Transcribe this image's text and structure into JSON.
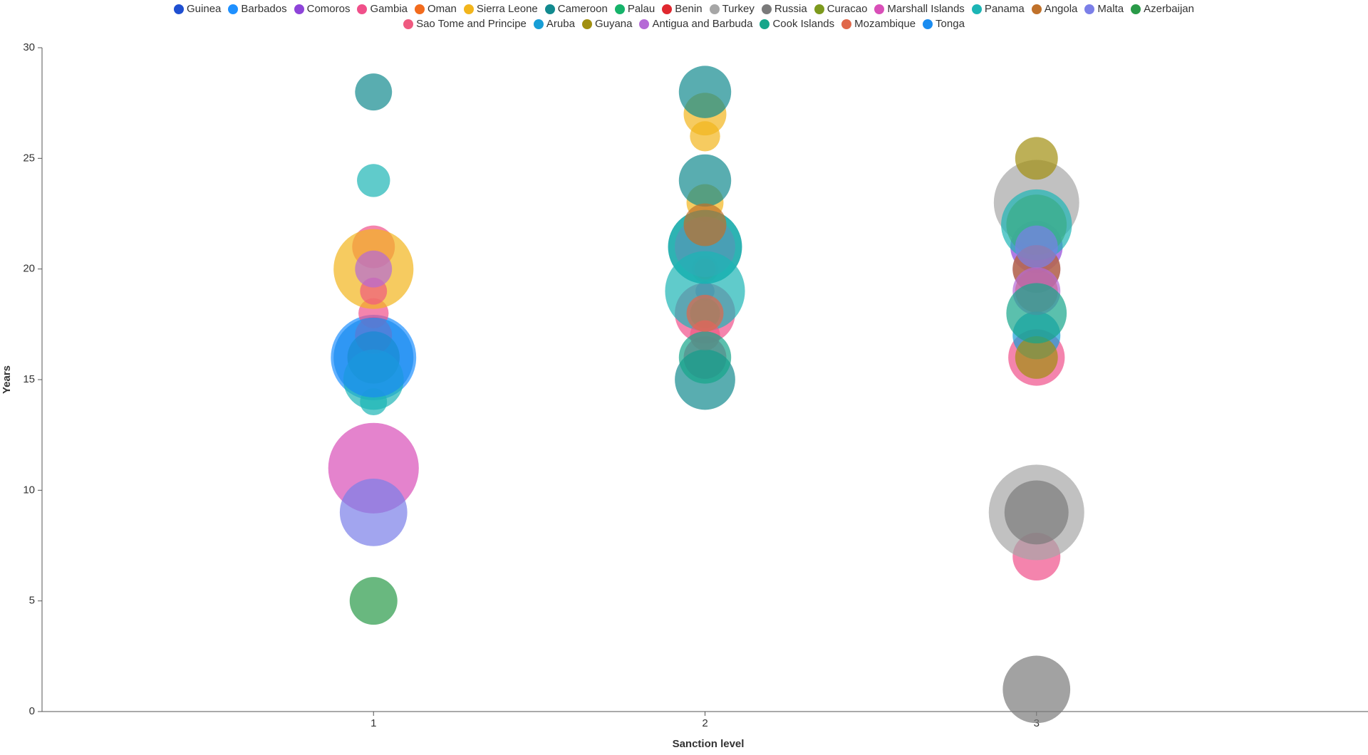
{
  "chart_data": {
    "type": "bubble",
    "xlabel": "Sanction level",
    "ylabel": "Years",
    "xlim": [
      0,
      4
    ],
    "xticks": [
      1,
      2,
      3
    ],
    "ylim": [
      0,
      30
    ],
    "yticks": [
      0,
      5,
      10,
      15,
      20,
      25,
      30
    ],
    "grid": false,
    "legend": "top",
    "series": [
      {
        "name": "Guinea",
        "color": "#1f4fd1",
        "x": [
          2
        ],
        "values": [
          19
        ],
        "sizes": [
          4
        ]
      },
      {
        "name": "Barbados",
        "color": "#1e90ff",
        "x": [
          1
        ],
        "values": [
          16
        ],
        "sizes": [
          80
        ]
      },
      {
        "name": "Comoros",
        "color": "#8e44d9",
        "x": [
          3,
          3
        ],
        "values": [
          21,
          20
        ],
        "sizes": [
          30,
          25
        ]
      },
      {
        "name": "Gambia",
        "color": "#f0508a",
        "x": [
          1,
          1,
          1,
          2,
          2,
          3,
          3
        ],
        "values": [
          21,
          18,
          17,
          18,
          16,
          16,
          7
        ],
        "sizes": [
          20,
          10,
          15,
          40,
          20,
          35,
          25
        ]
      },
      {
        "name": "Oman",
        "color": "#f26b1d",
        "x": [
          2,
          3
        ],
        "values": [
          20,
          19
        ],
        "sizes": [
          8,
          20
        ]
      },
      {
        "name": "Sierra Leone",
        "color": "#f2b51c",
        "x": [
          1,
          2,
          2,
          2
        ],
        "values": [
          20,
          27,
          26,
          23
        ],
        "sizes": [
          70,
          20,
          10,
          15
        ]
      },
      {
        "name": "Cameroon",
        "color": "#128a8f",
        "x": [
          1,
          2,
          2,
          1,
          2,
          2
        ],
        "values": [
          16,
          15,
          21,
          28,
          28,
          24
        ],
        "sizes": [
          30,
          40,
          60,
          15,
          30,
          30
        ]
      },
      {
        "name": "Palau",
        "color": "#16b36a",
        "x": [
          2
        ],
        "values": [
          18
        ],
        "sizes": [
          10
        ]
      },
      {
        "name": "Benin",
        "color": "#e0282f",
        "x": [
          2
        ],
        "values": [
          20
        ],
        "sizes": [
          5
        ]
      },
      {
        "name": "Turkey",
        "color": "#a6a6a6",
        "x": [
          3,
          3
        ],
        "values": [
          9,
          23
        ],
        "sizes": [
          100,
          80
        ]
      },
      {
        "name": "Russia",
        "color": "#7a7a7a",
        "x": [
          3,
          3
        ],
        "values": [
          1,
          9
        ],
        "sizes": [
          50,
          45
        ]
      },
      {
        "name": "Curacao",
        "color": "#7d9a1e",
        "x": [
          3
        ],
        "values": [
          22
        ],
        "sizes": [
          40
        ]
      },
      {
        "name": "Marshall Islands",
        "color": "#d94fb8",
        "x": [
          1,
          2
        ],
        "values": [
          11,
          21
        ],
        "sizes": [
          90,
          40
        ]
      },
      {
        "name": "Panama",
        "color": "#1cb5b5",
        "x": [
          1,
          1,
          2,
          2,
          3,
          1
        ],
        "values": [
          24,
          15,
          19,
          21,
          22,
          14
        ],
        "sizes": [
          12,
          40,
          70,
          60,
          55,
          8
        ]
      },
      {
        "name": "Angola",
        "color": "#c0712a",
        "x": [
          2,
          3
        ],
        "values": [
          22,
          20
        ],
        "sizes": [
          20,
          25
        ]
      },
      {
        "name": "Malta",
        "color": "#7b7fe8",
        "x": [
          1,
          3
        ],
        "values": [
          9,
          21
        ],
        "sizes": [
          50,
          20
        ]
      },
      {
        "name": "Azerbaijan",
        "color": "#2a9a48",
        "x": [
          1
        ],
        "values": [
          5
        ],
        "sizes": [
          25
        ]
      },
      {
        "name": "Sao Tome and Principe",
        "color": "#ef5a80",
        "x": [
          1,
          2
        ],
        "values": [
          19,
          17
        ],
        "sizes": [
          8,
          10
        ]
      },
      {
        "name": "Aruba",
        "color": "#179ed6",
        "x": [
          3
        ],
        "values": [
          17
        ],
        "sizes": [
          25
        ]
      },
      {
        "name": "Guyana",
        "color": "#a18f10",
        "x": [
          3,
          3
        ],
        "values": [
          25,
          16
        ],
        "sizes": [
          20,
          20
        ]
      },
      {
        "name": "Antigua and Barbuda",
        "color": "#b56ad6",
        "x": [
          1,
          3
        ],
        "values": [
          20,
          19
        ],
        "sizes": [
          15,
          25
        ]
      },
      {
        "name": "Cook Islands",
        "color": "#16a58a",
        "x": [
          2,
          3
        ],
        "values": [
          16,
          18
        ],
        "sizes": [
          30,
          40
        ]
      },
      {
        "name": "Mozambique",
        "color": "#e0684a",
        "x": [
          2
        ],
        "values": [
          18
        ],
        "sizes": [
          15
        ]
      },
      {
        "name": "Tonga",
        "color": "#1a8cf0",
        "x": [
          1
        ],
        "values": [
          16
        ],
        "sizes": [
          70
        ]
      }
    ]
  }
}
